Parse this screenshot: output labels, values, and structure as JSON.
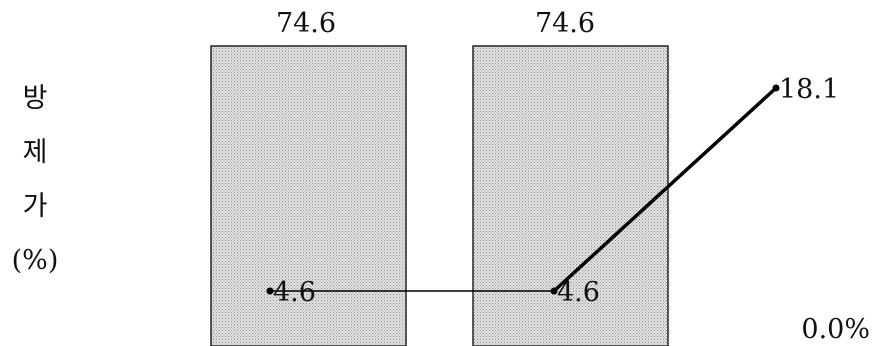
{
  "chart_data": {
    "type": "bar",
    "categories": [
      "",
      "",
      ""
    ],
    "ylabel_chars": [
      "방",
      "제",
      "가",
      "(%)"
    ],
    "ylim": [
      0,
      80
    ],
    "grid": false,
    "series": [
      {
        "type": "bar",
        "values": [
          74.6,
          74.6,
          0.0
        ],
        "labels": [
          "74.6",
          "74.6",
          "0.0%"
        ],
        "color": "#c8c8c8"
      },
      {
        "type": "line",
        "values": [
          4.6,
          4.6,
          18.1
        ],
        "labels": [
          "4.6",
          "4.6",
          "18.1"
        ],
        "color": "#000000"
      }
    ]
  }
}
